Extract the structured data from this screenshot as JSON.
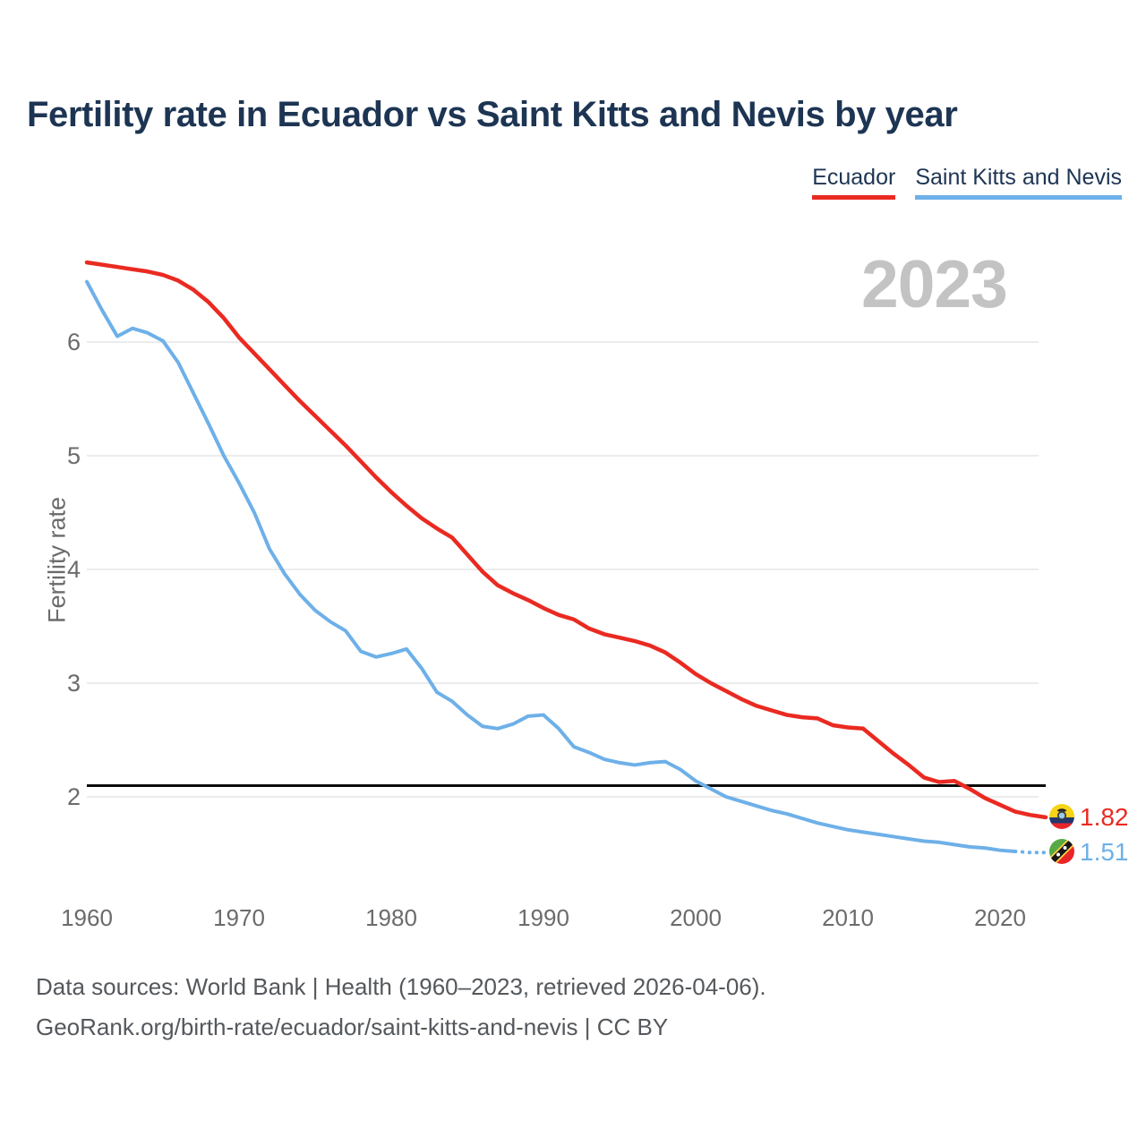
{
  "header": {
    "title": "Fertility rate in Ecuador vs Saint Kitts and Nevis by year"
  },
  "legend": [
    {
      "label": "Ecuador",
      "color": "#ea2a21"
    },
    {
      "label": "Saint Kitts and Nevis",
      "color": "#6eb0e8"
    }
  ],
  "year_badge": "2023",
  "end_labels": [
    {
      "value": "1.82",
      "color": "#ea2a21",
      "flag": "ecuador-flag"
    },
    {
      "value": "1.51",
      "color": "#6eb0e8",
      "flag": "saint-kitts-and-nevis-flag"
    }
  ],
  "footer": {
    "line1": "Data sources: World Bank | Health (1960–2023, retrieved 2026-04-06).",
    "line2": "GeoRank.org/birth-rate/ecuador/saint-kitts-and-nevis | CC BY"
  },
  "chart_data": {
    "type": "line",
    "title": "Fertility rate in Ecuador vs Saint Kitts and Nevis by year",
    "xlabel": "",
    "ylabel": "Fertility rate",
    "x_ticks": [
      1960,
      1970,
      1980,
      1990,
      2000,
      2010,
      2020
    ],
    "y_ticks": [
      2,
      3,
      4,
      5,
      6
    ],
    "xlim": [
      1960,
      2023
    ],
    "ylim": [
      1.3,
      6.9
    ],
    "grid": "horizontal",
    "legend_position": "top-right",
    "current_year_label": "2023",
    "reference_line": 2.1,
    "x": [
      1960,
      1961,
      1962,
      1963,
      1964,
      1965,
      1966,
      1967,
      1968,
      1969,
      1970,
      1971,
      1972,
      1973,
      1974,
      1975,
      1976,
      1977,
      1978,
      1979,
      1980,
      1981,
      1982,
      1983,
      1984,
      1985,
      1986,
      1987,
      1988,
      1989,
      1990,
      1991,
      1992,
      1993,
      1994,
      1995,
      1996,
      1997,
      1998,
      1999,
      2000,
      2001,
      2002,
      2003,
      2004,
      2005,
      2006,
      2007,
      2008,
      2009,
      2010,
      2011,
      2012,
      2013,
      2014,
      2015,
      2016,
      2017,
      2018,
      2019,
      2020,
      2021,
      2022,
      2023
    ],
    "series": [
      {
        "name": "Ecuador",
        "color": "#ea2a21",
        "end_value": 1.82,
        "values": [
          6.7,
          6.68,
          6.66,
          6.64,
          6.62,
          6.59,
          6.54,
          6.46,
          6.35,
          6.21,
          6.04,
          5.9,
          5.76,
          5.62,
          5.48,
          5.35,
          5.22,
          5.09,
          4.95,
          4.81,
          4.68,
          4.56,
          4.45,
          4.36,
          4.28,
          4.13,
          3.98,
          3.86,
          3.79,
          3.73,
          3.66,
          3.6,
          3.56,
          3.48,
          3.43,
          3.4,
          3.37,
          3.33,
          3.27,
          3.18,
          3.08,
          3.0,
          2.93,
          2.86,
          2.8,
          2.76,
          2.72,
          2.7,
          2.69,
          2.63,
          2.61,
          2.6,
          2.49,
          2.38,
          2.28,
          2.17,
          2.13,
          2.14,
          2.07,
          1.99,
          1.93,
          1.87,
          1.84,
          1.82
        ]
      },
      {
        "name": "Saint Kitts and Nevis",
        "color": "#6eb0e8",
        "end_value": 1.51,
        "dotted_from_year": 2021,
        "values": [
          6.53,
          6.28,
          6.05,
          6.12,
          6.08,
          6.01,
          5.82,
          5.55,
          5.28,
          5.0,
          4.76,
          4.5,
          4.18,
          3.96,
          3.78,
          3.64,
          3.54,
          3.46,
          3.28,
          3.23,
          3.26,
          3.3,
          3.13,
          2.92,
          2.84,
          2.72,
          2.62,
          2.6,
          2.64,
          2.71,
          2.72,
          2.6,
          2.44,
          2.39,
          2.33,
          2.3,
          2.28,
          2.3,
          2.31,
          2.24,
          2.14,
          2.07,
          2.0,
          1.96,
          1.92,
          1.88,
          1.85,
          1.81,
          1.77,
          1.74,
          1.71,
          1.69,
          1.67,
          1.65,
          1.63,
          1.61,
          1.6,
          1.58,
          1.56,
          1.55,
          1.53,
          1.52,
          1.51,
          1.51
        ]
      }
    ]
  }
}
